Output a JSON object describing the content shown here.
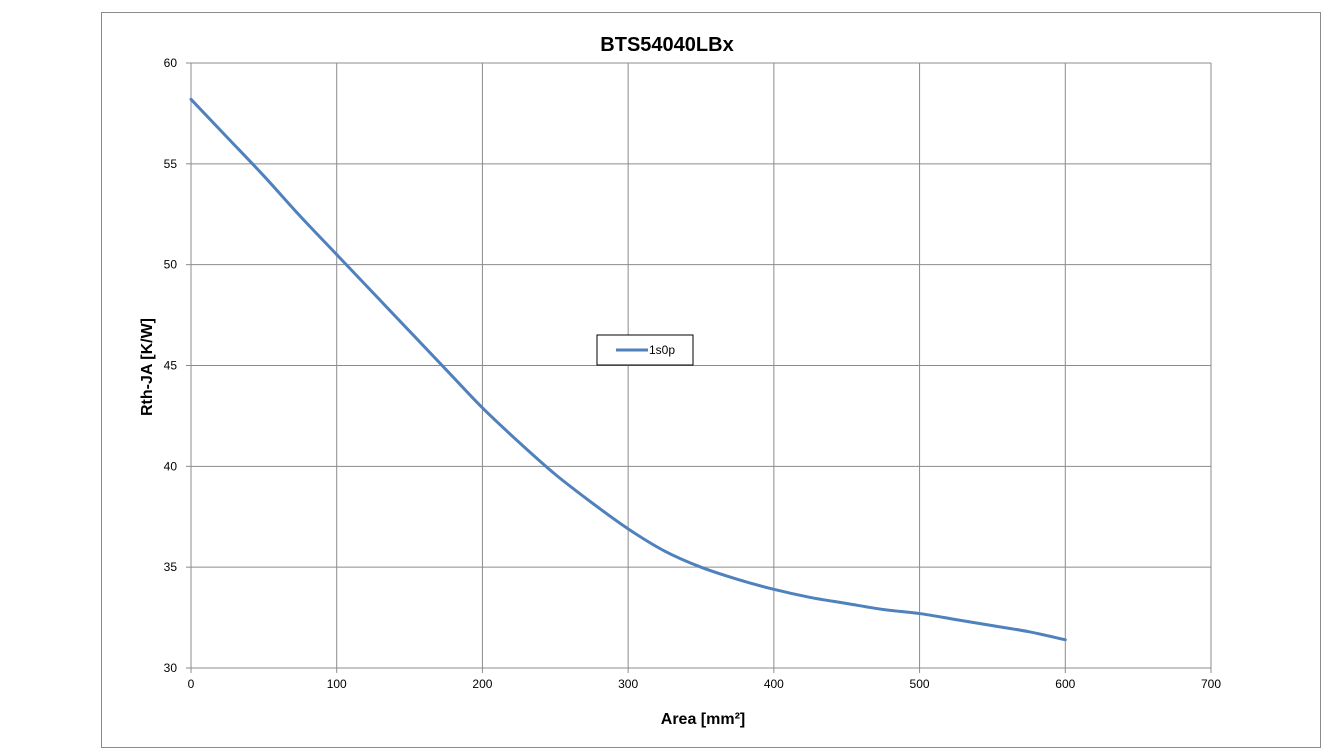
{
  "chart_data": {
    "type": "line",
    "title": "BTS54040LBx",
    "xlabel": "Area [mm²]",
    "ylabel": "Rth-JA [K/W]",
    "xlim": [
      0,
      700
    ],
    "ylim": [
      30,
      60
    ],
    "xticks": [
      0,
      100,
      200,
      300,
      400,
      500,
      600,
      700
    ],
    "yticks": [
      30,
      35,
      40,
      45,
      50,
      55,
      60
    ],
    "grid": true,
    "legend_position": "center",
    "series": [
      {
        "name": "1s0p",
        "color": "#4f81bd",
        "x": [
          0,
          25,
          50,
          75,
          100,
          125,
          150,
          175,
          200,
          225,
          250,
          275,
          300,
          325,
          350,
          375,
          400,
          425,
          450,
          475,
          500,
          525,
          550,
          575,
          600
        ],
        "y": [
          58.2,
          56.3,
          54.4,
          52.4,
          50.5,
          48.6,
          46.7,
          44.8,
          42.9,
          41.2,
          39.6,
          38.2,
          36.9,
          35.8,
          35.0,
          34.4,
          33.9,
          33.5,
          33.2,
          32.9,
          32.7,
          32.4,
          32.1,
          31.8,
          31.4
        ]
      }
    ]
  }
}
